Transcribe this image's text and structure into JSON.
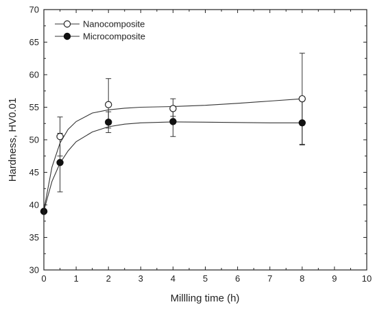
{
  "chart_data": {
    "type": "scatter",
    "xlabel": "Millling time (h)",
    "ylabel": "Hardness, HV0.01",
    "xlim": [
      0,
      10
    ],
    "ylim": [
      30,
      70
    ],
    "xticks": [
      "0",
      "1",
      "2",
      "3",
      "4",
      "5",
      "6",
      "7",
      "8",
      "9",
      "10"
    ],
    "yticks": [
      "30",
      "35",
      "40",
      "45",
      "50",
      "55",
      "60",
      "65",
      "70"
    ],
    "grid": false,
    "legend_position": "top-left",
    "fit_curves": true,
    "series": [
      {
        "name": "Nanocomposite",
        "marker": "open-circle",
        "color": "#222222",
        "x": [
          0,
          0.5,
          2,
          4,
          8
        ],
        "y": [
          39,
          50.5,
          55.4,
          54.8,
          56.3
        ],
        "err_low": [
          0,
          3,
          3.6,
          1.2,
          7
        ],
        "err_high": [
          0,
          3,
          4,
          1.5,
          7
        ],
        "fit": [
          [
            0,
            39.2
          ],
          [
            0.25,
            45.8
          ],
          [
            0.5,
            49.5
          ],
          [
            0.75,
            51.6
          ],
          [
            1,
            52.8
          ],
          [
            1.5,
            54.1
          ],
          [
            2,
            54.6
          ],
          [
            2.5,
            54.85
          ],
          [
            3,
            55
          ],
          [
            4,
            55.1
          ],
          [
            5,
            55.3
          ],
          [
            6,
            55.6
          ],
          [
            7,
            55.95
          ],
          [
            8,
            56.3
          ]
        ]
      },
      {
        "name": "Microcomposite",
        "marker": "filled-circle",
        "color": "#111111",
        "x": [
          0,
          0.5,
          2,
          4,
          8
        ],
        "y": [
          39,
          46.5,
          52.7,
          52.8,
          52.6
        ],
        "err_low": [
          0,
          4.5,
          1.6,
          2.3,
          3.4
        ],
        "err_high": [
          0,
          4.5,
          1.6,
          2.3,
          3.4
        ],
        "fit": [
          [
            0,
            39.1
          ],
          [
            0.25,
            43.6
          ],
          [
            0.5,
            46.4
          ],
          [
            0.75,
            48.3
          ],
          [
            1,
            49.7
          ],
          [
            1.5,
            51.2
          ],
          [
            2,
            52
          ],
          [
            2.5,
            52.4
          ],
          [
            3,
            52.6
          ],
          [
            4,
            52.75
          ],
          [
            5,
            52.7
          ],
          [
            6,
            52.65
          ],
          [
            7,
            52.6
          ],
          [
            8,
            52.6
          ]
        ]
      }
    ]
  }
}
